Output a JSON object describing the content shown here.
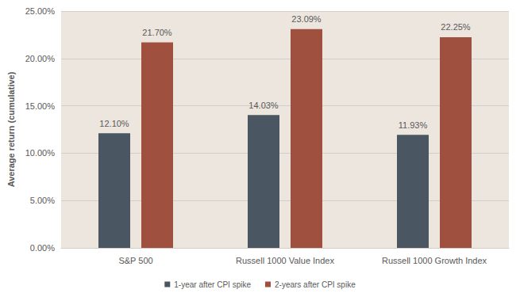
{
  "chart_data": {
    "type": "bar",
    "y_label": "Average return (cumulative)",
    "categories": [
      "S&P 500",
      "Russell 1000 Value Index",
      "Russell 1000 Growth Index"
    ],
    "series": [
      {
        "name": "1-year after CPI spike",
        "color": "#4a5662",
        "values": [
          12.1,
          14.03,
          11.93
        ],
        "value_labels": [
          "12.10%",
          "14.03%",
          "11.93%"
        ]
      },
      {
        "name": "2-years after CPI spike",
        "color": "#a0503f",
        "values": [
          21.7,
          23.09,
          22.25
        ],
        "value_labels": [
          "21.70%",
          "23.09%",
          "22.25%"
        ]
      }
    ],
    "ylim": [
      0,
      25
    ],
    "yticks": [
      {
        "value": 0,
        "label": "0.00%"
      },
      {
        "value": 5,
        "label": "5.00%"
      },
      {
        "value": 10,
        "label": "10.00%"
      },
      {
        "value": 15,
        "label": "15.00%"
      },
      {
        "value": 20,
        "label": "20.00%"
      },
      {
        "value": 25,
        "label": "25.00%"
      }
    ],
    "grid": true,
    "legend": "bottom",
    "data_labels": true
  }
}
